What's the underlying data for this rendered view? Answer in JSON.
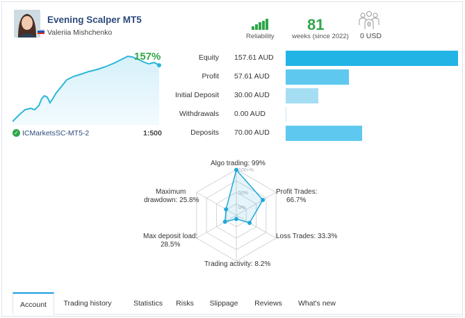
{
  "header": {
    "signal_name": "Evening Scalper MT5",
    "author": "Valeriia Mishchenko",
    "reliability_label": "Reliability",
    "weeks_value": "81",
    "weeks_label": "weeks (since 2022)",
    "subscribers_count": "0",
    "subscribers_value": "0 USD"
  },
  "growth": {
    "percent": "157%",
    "server": "ICMarketsSC-MT5-2",
    "leverage": "1:500",
    "line_color": "#29b6d8"
  },
  "stats": [
    {
      "label": "Equity",
      "value": "157.61 AUD",
      "amount": 157.61,
      "color": "#23b4e6"
    },
    {
      "label": "Profit",
      "value": "57.61 AUD",
      "amount": 57.61,
      "color": "#5fc8ee"
    },
    {
      "label": "Initial Deposit",
      "value": "30.00 AUD",
      "amount": 30.0,
      "color": "#a5def3"
    },
    {
      "label": "Withdrawals",
      "value": "0.00 AUD",
      "amount": 0.0,
      "color": "#5fc8ee"
    },
    {
      "label": "Deposits",
      "value": "70.00 AUD",
      "amount": 70.0,
      "color": "#5fc8ee"
    }
  ],
  "radar": {
    "labels": {
      "algo": "Algo trading: 99%",
      "profit": "Profit Trades:",
      "profit_val": "66.7%",
      "loss": "Loss Trades: 33.3%",
      "activity": "Trading activity: 8.2%",
      "deposit_load": "Max deposit load:",
      "deposit_load_val": "28.5%",
      "drawdown": "Maximum",
      "drawdown_val": "drawdown: 25.8%"
    },
    "rings": {
      "r100": "100+%",
      "r50": "50%",
      "r0": "0%"
    },
    "values": [
      0.99,
      0.667,
      0.333,
      0.082,
      0.285,
      0.258
    ],
    "color": "#1fa8d8"
  },
  "tabs": [
    {
      "label": "Account",
      "active": true
    },
    {
      "label": "Trading history",
      "active": false
    },
    {
      "label": "Statistics",
      "active": false
    },
    {
      "label": "Risks",
      "active": false
    },
    {
      "label": "Slippage",
      "active": false
    },
    {
      "label": "Reviews",
      "active": false
    },
    {
      "label": "What's new",
      "active": false
    }
  ]
}
